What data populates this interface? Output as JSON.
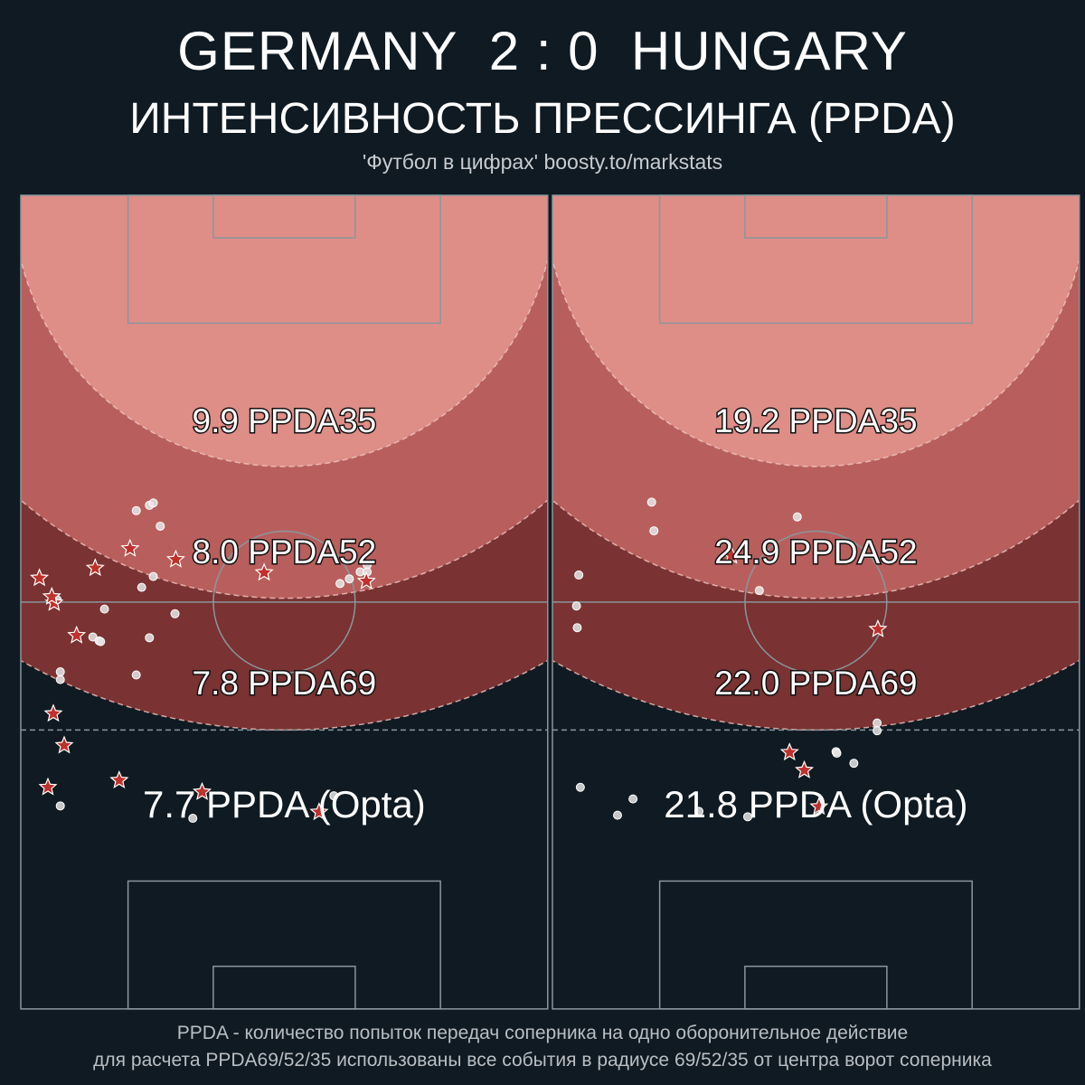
{
  "header": {
    "home_team": "GERMANY",
    "score": "2 : 0",
    "away_team": "HUNGARY",
    "subtitle": "ИНТЕНСИВНОСТЬ ПРЕССИНГА (PPDA)",
    "credit": "'Футбол в цифрах' boosty.to/markstats"
  },
  "footer": {
    "line1": "PPDA - количество попыток передач соперника на одно оборонительное действие",
    "line2": "для расчета PPDA69/52/35 использованы все события в радиусе 69/52/35 от центра ворот соперника"
  },
  "colors": {
    "background": "#0f1a22",
    "zone35": "#df8d87",
    "zone52": "#b85f5d",
    "zone69": "#7a3232",
    "pitch_line": "#8a969c",
    "star_fill": "#c0302c",
    "dot_fill": "#e6e6e6"
  },
  "legend": {
    "star_icon": "star-icon (defensive action)",
    "dot_icon": "circle-icon (opponent pass)"
  },
  "chart_data": [
    {
      "type": "scatter",
      "team": "GERMANY",
      "zones": [
        {
          "radius": 35,
          "label": "9.9 PPDA35"
        },
        {
          "radius": 52,
          "label": "8.0 PPDA52"
        },
        {
          "radius": 69,
          "label": "7.8 PPDA69"
        }
      ],
      "opta_label": "7.7 PPDA (Opta)",
      "defensive_actions": [
        [
          7.2,
          56.8
        ],
        [
          4.3,
          52.6
        ],
        [
          4.0,
          51.8
        ],
        [
          2.4,
          49.4
        ],
        [
          9.6,
          48.1
        ],
        [
          14.1,
          45.6
        ],
        [
          20.0,
          47.0
        ],
        [
          31.4,
          48.7
        ],
        [
          44.6,
          49.8
        ],
        [
          5.6,
          71.0
        ],
        [
          4.2,
          66.9
        ],
        [
          12.7,
          75.5
        ],
        [
          3.5,
          76.4
        ],
        [
          23.4,
          77.0
        ],
        [
          38.5,
          79.6
        ]
      ],
      "opponent_passes": [
        [
          14.9,
          40.7
        ],
        [
          16.6,
          40.0
        ],
        [
          17.1,
          39.7
        ],
        [
          18.0,
          42.7
        ],
        [
          14.9,
          61.9
        ],
        [
          10.8,
          53.4
        ],
        [
          4.7,
          52.2
        ],
        [
          15.6,
          50.6
        ],
        [
          17.1,
          49.2
        ],
        [
          19.9,
          54.0
        ],
        [
          9.3,
          57.0
        ],
        [
          10.1,
          57.5
        ],
        [
          10.3,
          57.6
        ],
        [
          16.6,
          57.1
        ],
        [
          41.2,
          50.1
        ],
        [
          42.4,
          49.5
        ],
        [
          43.8,
          48.6
        ],
        [
          44.7,
          47.7
        ],
        [
          44.7,
          48.6
        ],
        [
          5.1,
          61.5
        ],
        [
          5.1,
          62.5
        ],
        [
          5.1,
          78.8
        ],
        [
          22.2,
          80.4
        ],
        [
          40.4,
          77.5
        ]
      ]
    },
    {
      "type": "scatter",
      "team": "HUNGARY",
      "zones": [
        {
          "radius": 35,
          "label": "19.2 PPDA35"
        },
        {
          "radius": 52,
          "label": "24.9 PPDA52"
        },
        {
          "radius": 69,
          "label": "22.0 PPDA69"
        }
      ],
      "opta_label": "21.8 PPDA (Opta)",
      "defensive_actions": [
        [
          23.1,
          46.5
        ],
        [
          42.0,
          56.0
        ],
        [
          30.6,
          71.9
        ],
        [
          32.5,
          74.2
        ],
        [
          34.4,
          78.9
        ]
      ],
      "opponent_passes": [
        [
          13.1,
          43.3
        ],
        [
          12.8,
          39.6
        ],
        [
          31.6,
          41.5
        ],
        [
          3.4,
          49.0
        ],
        [
          3.1,
          53.0
        ],
        [
          3.2,
          55.8
        ],
        [
          26.7,
          51.0
        ],
        [
          41.9,
          68.1
        ],
        [
          41.9,
          69.1
        ],
        [
          36.6,
          71.8
        ],
        [
          36.7,
          72.0
        ],
        [
          38.9,
          73.3
        ],
        [
          3.6,
          76.4
        ],
        [
          10.4,
          77.9
        ],
        [
          8.4,
          80.0
        ],
        [
          18.9,
          79.5
        ],
        [
          25.2,
          80.2
        ]
      ]
    }
  ]
}
